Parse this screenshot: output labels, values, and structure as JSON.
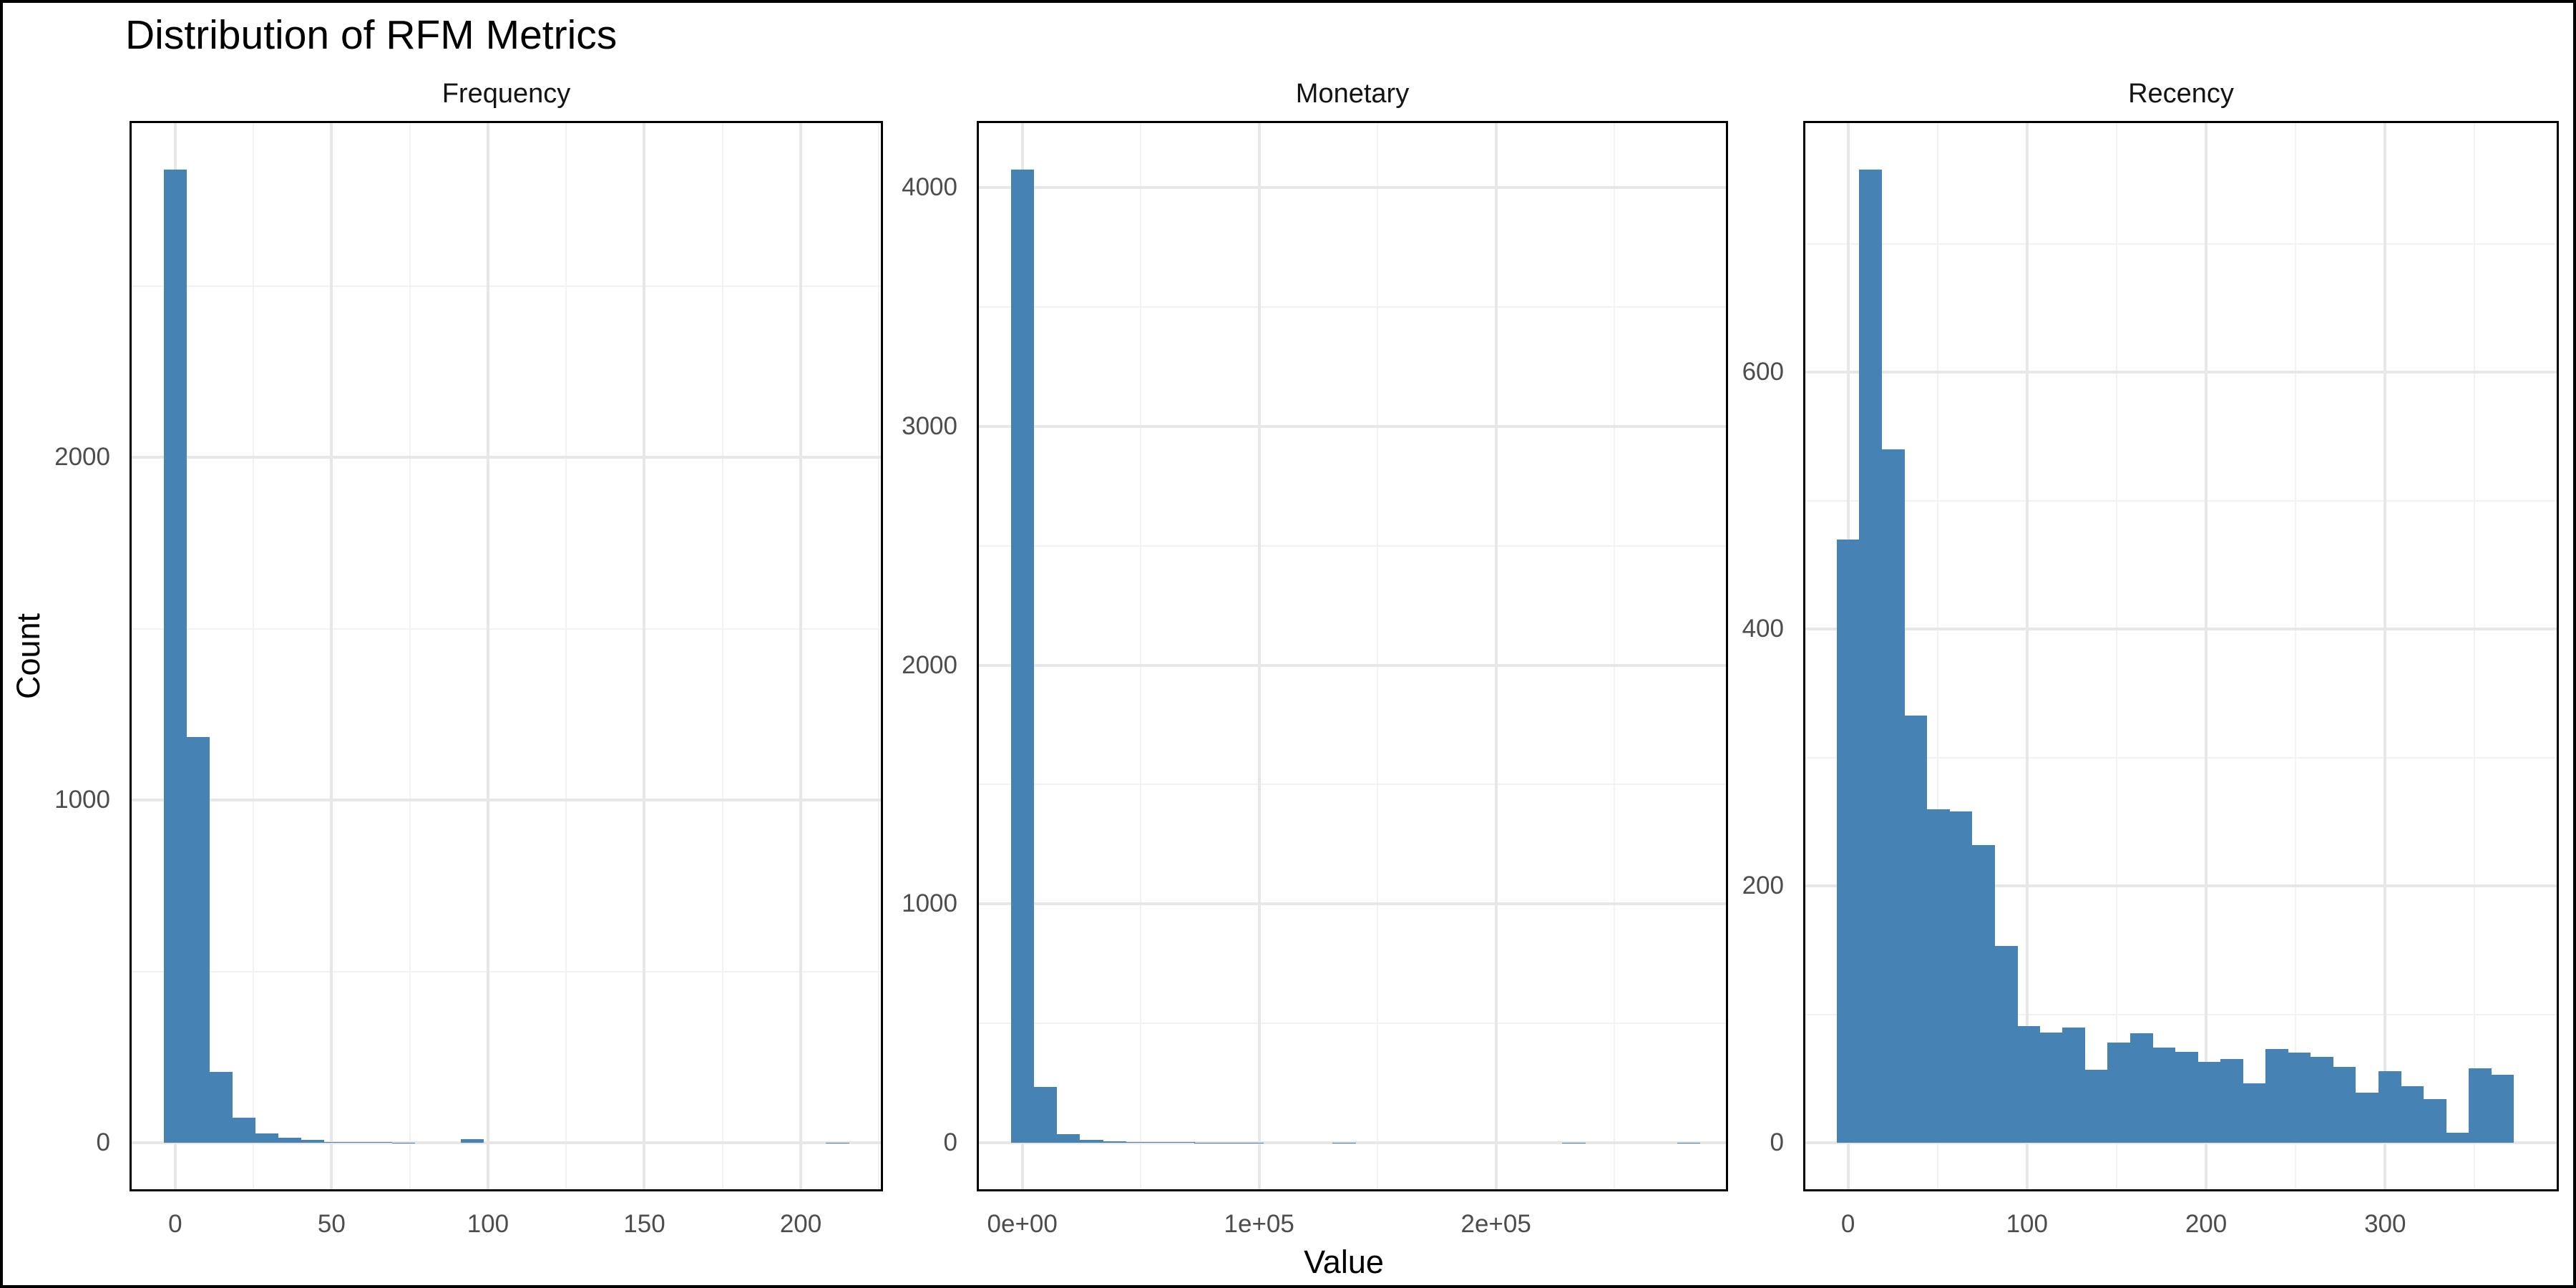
{
  "chart_data": {
    "type": "bar",
    "subtype": "faceted-histogram",
    "title": "Distribution of RFM Metrics",
    "xlabel": "Value",
    "ylabel": "Count",
    "legend": "none",
    "grid": "on",
    "colors": {
      "bar": "#4682B4",
      "grid_major": "#E7E7E7",
      "grid_minor": "#F2F2F2",
      "panel_border": "#000000",
      "tick_label": "#4D4D4D",
      "title_text": "#000000",
      "background": "#FFFFFF"
    },
    "facets": [
      {
        "label": "Frequency",
        "bin_start": -3.65,
        "bin_width": 7.3,
        "counts": [
          2840,
          1185,
          207,
          74,
          27,
          14,
          8,
          3,
          2,
          2,
          1,
          0,
          0,
          10,
          0,
          0,
          0,
          0,
          0,
          0,
          0,
          0,
          0,
          0,
          0,
          0,
          0,
          0,
          0,
          1
        ],
        "x_range": [
          -14.6,
          226.3
        ],
        "y_range": [
          -142,
          2982
        ],
        "x_major_ticks": [
          0,
          50,
          100,
          150,
          200
        ],
        "x_minor_ticks": [
          25,
          75,
          125,
          175,
          225
        ],
        "y_major_ticks": [
          0,
          1000,
          2000
        ],
        "y_minor_ticks": [
          500,
          1500,
          2500
        ],
        "x_tick_labels": [
          "0",
          "50",
          "100",
          "150",
          "200"
        ],
        "y_tick_labels": [
          "0",
          "1000",
          "2000"
        ]
      },
      {
        "label": "Monetary",
        "bin_start": -4850,
        "bin_width": 9700,
        "counts": [
          4075,
          233,
          35,
          12,
          6,
          4,
          2,
          2,
          1,
          1,
          1,
          0,
          0,
          0,
          1,
          0,
          0,
          0,
          0,
          0,
          0,
          0,
          0,
          0,
          1,
          0,
          0,
          0,
          0,
          1
        ],
        "x_range": [
          -19250,
          298000
        ],
        "y_range": [
          -204,
          4279
        ],
        "x_major_ticks": [
          0,
          100000,
          200000
        ],
        "x_minor_ticks": [
          50000,
          150000,
          250000
        ],
        "y_major_ticks": [
          0,
          1000,
          2000,
          3000,
          4000
        ],
        "y_minor_ticks": [
          500,
          1500,
          2500,
          3500
        ],
        "x_tick_labels": [
          "0e+00",
          "1e+05",
          "2e+05"
        ],
        "y_tick_labels": [
          "0",
          "1000",
          "2000",
          "3000",
          "4000"
        ]
      },
      {
        "label": "Recency",
        "bin_start": -6.3,
        "bin_width": 12.6,
        "counts": [
          470,
          758,
          540,
          333,
          260,
          258,
          232,
          153,
          91,
          86,
          90,
          57,
          78,
          85,
          74,
          71,
          63,
          65,
          46,
          73,
          70,
          67,
          59,
          39,
          56,
          44,
          34,
          8,
          58,
          53
        ],
        "x_range": [
          -25,
          397
        ],
        "y_range": [
          -37.9,
          795.9
        ],
        "x_major_ticks": [
          0,
          100,
          200,
          300
        ],
        "x_minor_ticks": [
          50,
          150,
          250,
          350
        ],
        "y_major_ticks": [
          0,
          200,
          400,
          600
        ],
        "y_minor_ticks": [
          100,
          300,
          500,
          700
        ],
        "x_tick_labels": [
          "0",
          "100",
          "200",
          "300"
        ],
        "y_tick_labels": [
          "0",
          "200",
          "400",
          "600"
        ]
      }
    ]
  }
}
